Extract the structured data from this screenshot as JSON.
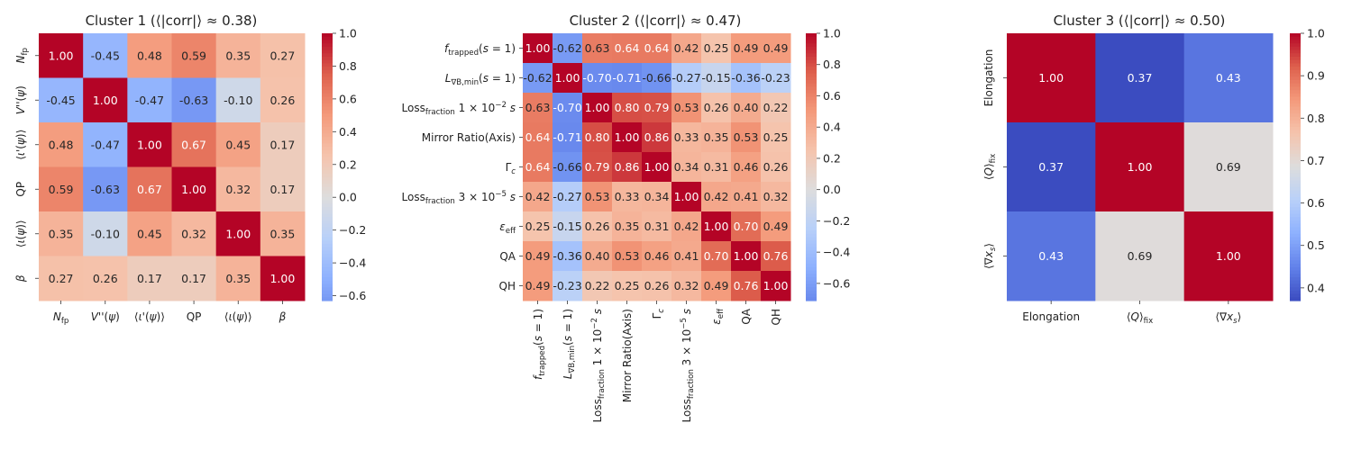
{
  "chart_data": [
    {
      "type": "heatmap",
      "title": "Cluster 1 (⟨|corr|⟩ ≈ 0.38)",
      "labels": [
        "N_fp",
        "V''(ψ)",
        "⟨ι'(ψ)⟩",
        "QP",
        "⟨ι(ψ)⟩",
        "β"
      ],
      "values": [
        [
          1.0,
          -0.45,
          0.48,
          0.59,
          0.35,
          0.27
        ],
        [
          -0.45,
          1.0,
          -0.47,
          -0.63,
          -0.1,
          0.26
        ],
        [
          0.48,
          -0.47,
          1.0,
          0.67,
          0.45,
          0.17
        ],
        [
          0.59,
          -0.63,
          0.67,
          1.0,
          0.32,
          0.17
        ],
        [
          0.35,
          -0.1,
          0.45,
          0.32,
          1.0,
          0.35
        ],
        [
          0.27,
          0.26,
          0.17,
          0.17,
          0.35,
          1.0
        ]
      ],
      "vmin": -0.63,
      "vmax": 1.0,
      "colorbar_ticks": [
        1.0,
        0.8,
        0.6,
        0.4,
        0.2,
        0.0,
        -0.2,
        -0.4,
        -0.6
      ],
      "colormap": "coolwarm",
      "x_label_rotation": 0
    },
    {
      "type": "heatmap",
      "title": "Cluster 2 (⟨|corr|⟩ ≈ 0.47)",
      "labels": [
        "f_trapped(s = 1)",
        "L_∇B,min(s = 1)",
        "Loss_fraction 1×10⁻²s",
        "Mirror Ratio(Axis)",
        "Γ_c",
        "Loss_fraction 3×10⁻⁵s",
        "ε_eff",
        "QA",
        "QH"
      ],
      "values": [
        [
          1.0,
          -0.62,
          0.63,
          0.64,
          0.64,
          0.42,
          0.25,
          0.49,
          0.49
        ],
        [
          -0.62,
          1.0,
          -0.7,
          -0.71,
          -0.66,
          -0.27,
          -0.15,
          -0.36,
          -0.23
        ],
        [
          0.63,
          -0.7,
          1.0,
          0.8,
          0.79,
          0.53,
          0.26,
          0.4,
          0.22
        ],
        [
          0.64,
          -0.71,
          0.8,
          1.0,
          0.86,
          0.33,
          0.35,
          0.53,
          0.25
        ],
        [
          0.64,
          -0.66,
          0.79,
          0.86,
          1.0,
          0.34,
          0.31,
          0.46,
          0.26
        ],
        [
          0.42,
          -0.27,
          0.53,
          0.33,
          0.34,
          1.0,
          0.42,
          0.41,
          0.32
        ],
        [
          0.25,
          -0.15,
          0.26,
          0.35,
          0.31,
          0.42,
          1.0,
          0.7,
          0.49
        ],
        [
          0.49,
          -0.36,
          0.4,
          0.53,
          0.46,
          0.41,
          0.7,
          1.0,
          0.76
        ],
        [
          0.49,
          -0.23,
          0.22,
          0.25,
          0.26,
          0.32,
          0.49,
          0.76,
          1.0
        ]
      ],
      "vmin": -0.71,
      "vmax": 1.0,
      "colorbar_ticks": [
        1.0,
        0.8,
        0.6,
        0.4,
        0.2,
        0.0,
        -0.2,
        -0.4,
        -0.6
      ],
      "colormap": "coolwarm",
      "x_label_rotation": -90
    },
    {
      "type": "heatmap",
      "title": "Cluster 3 (⟨|corr|⟩ ≈ 0.50)",
      "labels": [
        "Elongation",
        "⟨Q⟩_fix",
        "⟨∇x_s⟩"
      ],
      "values": [
        [
          1.0,
          0.37,
          0.43
        ],
        [
          0.37,
          1.0,
          0.69
        ],
        [
          0.43,
          0.69,
          1.0
        ]
      ],
      "vmin": 0.37,
      "vmax": 1.0,
      "colorbar_ticks": [
        1.0,
        0.9,
        0.8,
        0.7,
        0.6,
        0.5,
        0.4
      ],
      "colormap": "coolwarm",
      "x_label_rotation": 0,
      "y_label_rotation": -90
    }
  ]
}
